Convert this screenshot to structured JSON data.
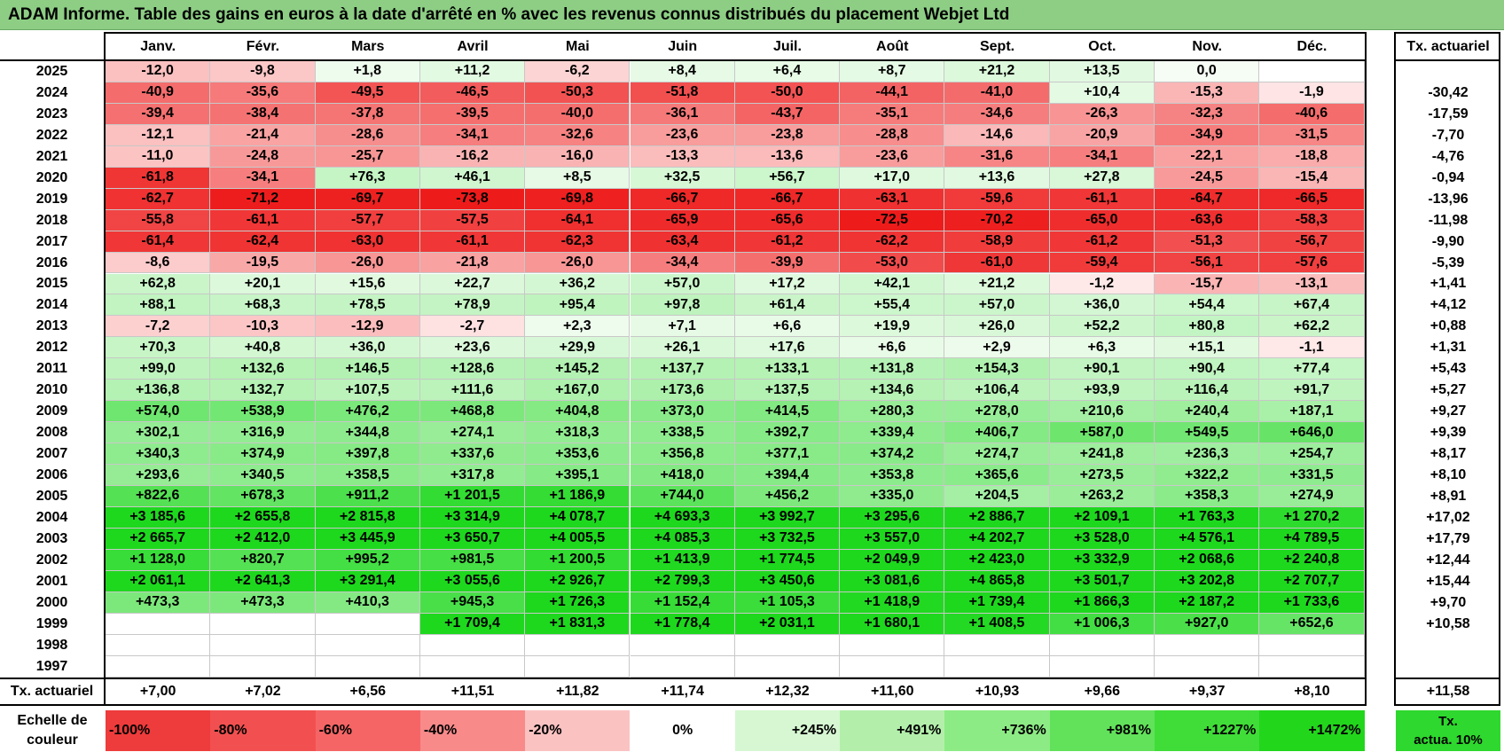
{
  "title": "ADAM Informe. Table des gains en euros à la date d'arrêté en % avec les revenus connus distribués du placement Webjet Ltd",
  "chart_data": {
    "type": "table",
    "columns": [
      "Janv.",
      "Févr.",
      "Mars",
      "Avril",
      "Mai",
      "Juin",
      "Juil.",
      "Août",
      "Sept.",
      "Oct.",
      "Nov.",
      "Déc."
    ],
    "actuarial_header": "Tx. actuariel",
    "rows": [
      {
        "year": "2025",
        "values": [
          "-12,0",
          "-9,8",
          "+1,8",
          "+11,2",
          "-6,2",
          "+8,4",
          "+6,4",
          "+8,7",
          "+21,2",
          "+13,5",
          "0,0",
          ""
        ],
        "actuarial": ""
      },
      {
        "year": "2024",
        "values": [
          "-40,9",
          "-35,6",
          "-49,5",
          "-46,5",
          "-50,3",
          "-51,8",
          "-50,0",
          "-44,1",
          "-41,0",
          "+10,4",
          "-15,3",
          "-1,9"
        ],
        "actuarial": "-30,42"
      },
      {
        "year": "2023",
        "values": [
          "-39,4",
          "-38,4",
          "-37,8",
          "-39,5",
          "-40,0",
          "-36,1",
          "-43,7",
          "-35,1",
          "-34,6",
          "-26,3",
          "-32,3",
          "-40,6"
        ],
        "actuarial": "-17,59"
      },
      {
        "year": "2022",
        "values": [
          "-12,1",
          "-21,4",
          "-28,6",
          "-34,1",
          "-32,6",
          "-23,6",
          "-23,8",
          "-28,8",
          "-14,6",
          "-20,9",
          "-34,9",
          "-31,5"
        ],
        "actuarial": "-7,70"
      },
      {
        "year": "2021",
        "values": [
          "-11,0",
          "-24,8",
          "-25,7",
          "-16,2",
          "-16,0",
          "-13,3",
          "-13,6",
          "-23,6",
          "-31,6",
          "-34,1",
          "-22,1",
          "-18,8"
        ],
        "actuarial": "-4,76"
      },
      {
        "year": "2020",
        "values": [
          "-61,8",
          "-34,1",
          "+76,3",
          "+46,1",
          "+8,5",
          "+32,5",
          "+56,7",
          "+17,0",
          "+13,6",
          "+27,8",
          "-24,5",
          "-15,4"
        ],
        "actuarial": "-0,94"
      },
      {
        "year": "2019",
        "values": [
          "-62,7",
          "-71,2",
          "-69,7",
          "-73,8",
          "-69,8",
          "-66,7",
          "-66,7",
          "-63,1",
          "-59,6",
          "-61,1",
          "-64,7",
          "-66,5"
        ],
        "actuarial": "-13,96"
      },
      {
        "year": "2018",
        "values": [
          "-55,8",
          "-61,1",
          "-57,7",
          "-57,5",
          "-64,1",
          "-65,9",
          "-65,6",
          "-72,5",
          "-70,2",
          "-65,0",
          "-63,6",
          "-58,3"
        ],
        "actuarial": "-11,98"
      },
      {
        "year": "2017",
        "values": [
          "-61,4",
          "-62,4",
          "-63,0",
          "-61,1",
          "-62,3",
          "-63,4",
          "-61,2",
          "-62,2",
          "-58,9",
          "-61,2",
          "-51,3",
          "-56,7"
        ],
        "actuarial": "-9,90"
      },
      {
        "year": "2016",
        "values": [
          "-8,6",
          "-19,5",
          "-26,0",
          "-21,8",
          "-26,0",
          "-34,4",
          "-39,9",
          "-53,0",
          "-61,0",
          "-59,4",
          "-56,1",
          "-57,6"
        ],
        "actuarial": "-5,39"
      },
      {
        "year": "2015",
        "values": [
          "+62,8",
          "+20,1",
          "+15,6",
          "+22,7",
          "+36,2",
          "+57,0",
          "+17,2",
          "+42,1",
          "+21,2",
          "-1,2",
          "-15,7",
          "-13,1"
        ],
        "actuarial": "+1,41"
      },
      {
        "year": "2014",
        "values": [
          "+88,1",
          "+68,3",
          "+78,5",
          "+78,9",
          "+95,4",
          "+97,8",
          "+61,4",
          "+55,4",
          "+57,0",
          "+36,0",
          "+54,4",
          "+67,4"
        ],
        "actuarial": "+4,12"
      },
      {
        "year": "2013",
        "values": [
          "-7,2",
          "-10,3",
          "-12,9",
          "-2,7",
          "+2,3",
          "+7,1",
          "+6,6",
          "+19,9",
          "+26,0",
          "+52,2",
          "+80,8",
          "+62,2"
        ],
        "actuarial": "+0,88"
      },
      {
        "year": "2012",
        "values": [
          "+70,3",
          "+40,8",
          "+36,0",
          "+23,6",
          "+29,9",
          "+26,1",
          "+17,6",
          "+6,6",
          "+2,9",
          "+6,3",
          "+15,1",
          "-1,1"
        ],
        "actuarial": "+1,31"
      },
      {
        "year": "2011",
        "values": [
          "+99,0",
          "+132,6",
          "+146,5",
          "+128,6",
          "+145,2",
          "+137,7",
          "+133,1",
          "+131,8",
          "+154,3",
          "+90,1",
          "+90,4",
          "+77,4"
        ],
        "actuarial": "+5,43"
      },
      {
        "year": "2010",
        "values": [
          "+136,8",
          "+132,7",
          "+107,5",
          "+111,6",
          "+167,0",
          "+173,6",
          "+137,5",
          "+134,6",
          "+106,4",
          "+93,9",
          "+116,4",
          "+91,7"
        ],
        "actuarial": "+5,27"
      },
      {
        "year": "2009",
        "values": [
          "+574,0",
          "+538,9",
          "+476,2",
          "+468,8",
          "+404,8",
          "+373,0",
          "+414,5",
          "+280,3",
          "+278,0",
          "+210,6",
          "+240,4",
          "+187,1"
        ],
        "actuarial": "+9,27"
      },
      {
        "year": "2008",
        "values": [
          "+302,1",
          "+316,9",
          "+344,8",
          "+274,1",
          "+318,3",
          "+338,5",
          "+392,7",
          "+339,4",
          "+406,7",
          "+587,0",
          "+549,5",
          "+646,0"
        ],
        "actuarial": "+9,39"
      },
      {
        "year": "2007",
        "values": [
          "+340,3",
          "+374,9",
          "+397,8",
          "+337,6",
          "+353,6",
          "+356,8",
          "+377,1",
          "+374,2",
          "+274,7",
          "+241,8",
          "+236,3",
          "+254,7"
        ],
        "actuarial": "+8,17"
      },
      {
        "year": "2006",
        "values": [
          "+293,6",
          "+340,5",
          "+358,5",
          "+317,8",
          "+395,1",
          "+418,0",
          "+394,4",
          "+353,8",
          "+365,6",
          "+273,5",
          "+322,2",
          "+331,5"
        ],
        "actuarial": "+8,10"
      },
      {
        "year": "2005",
        "values": [
          "+822,6",
          "+678,3",
          "+911,2",
          "+1 201,5",
          "+1 186,9",
          "+744,0",
          "+456,2",
          "+335,0",
          "+204,5",
          "+263,2",
          "+358,3",
          "+274,9"
        ],
        "actuarial": "+8,91"
      },
      {
        "year": "2004",
        "values": [
          "+3 185,6",
          "+2 655,8",
          "+2 815,8",
          "+3 314,9",
          "+4 078,7",
          "+4 693,3",
          "+3 992,7",
          "+3 295,6",
          "+2 886,7",
          "+2 109,1",
          "+1 763,3",
          "+1 270,2"
        ],
        "actuarial": "+17,02"
      },
      {
        "year": "2003",
        "values": [
          "+2 665,7",
          "+2 412,0",
          "+3 445,9",
          "+3 650,7",
          "+4 005,5",
          "+4 085,3",
          "+3 732,5",
          "+3 557,0",
          "+4 202,7",
          "+3 528,0",
          "+4 576,1",
          "+4 789,5"
        ],
        "actuarial": "+17,79"
      },
      {
        "year": "2002",
        "values": [
          "+1 128,0",
          "+820,7",
          "+995,2",
          "+981,5",
          "+1 200,5",
          "+1 413,9",
          "+1 774,5",
          "+2 049,9",
          "+2 423,0",
          "+3 332,9",
          "+2 068,6",
          "+2 240,8"
        ],
        "actuarial": "+12,44"
      },
      {
        "year": "2001",
        "values": [
          "+2 061,1",
          "+2 641,3",
          "+3 291,4",
          "+3 055,6",
          "+2 926,7",
          "+2 799,3",
          "+3 450,6",
          "+3 081,6",
          "+4 865,8",
          "+3 501,7",
          "+3 202,8",
          "+2 707,7"
        ],
        "actuarial": "+15,44"
      },
      {
        "year": "2000",
        "values": [
          "+473,3",
          "+473,3",
          "+410,3",
          "+945,3",
          "+1 726,3",
          "+1 152,4",
          "+1 105,3",
          "+1 418,9",
          "+1 739,4",
          "+1 866,3",
          "+2 187,2",
          "+1 733,6"
        ],
        "actuarial": "+9,70"
      },
      {
        "year": "1999",
        "values": [
          "",
          "",
          "",
          "+1 709,4",
          "+1 831,3",
          "+1 778,4",
          "+2 031,1",
          "+1 680,1",
          "+1 408,5",
          "+1 006,3",
          "+927,0",
          "+652,6"
        ],
        "actuarial": "+10,58"
      },
      {
        "year": "1998",
        "values": [
          "",
          "",
          "",
          "",
          "",
          "",
          "",
          "",
          "",
          "",
          "",
          ""
        ],
        "actuarial": ""
      },
      {
        "year": "1997",
        "values": [
          "",
          "",
          "",
          "",
          "",
          "",
          "",
          "",
          "",
          "",
          "",
          ""
        ],
        "actuarial": ""
      }
    ],
    "summary_row": {
      "label": "Tx. actuariel",
      "values": [
        "+7,00",
        "+7,02",
        "+6,56",
        "+11,51",
        "+11,82",
        "+11,74",
        "+12,32",
        "+11,60",
        "+10,93",
        "+9,66",
        "+9,37",
        "+8,10"
      ],
      "actuarial": "+11,58"
    }
  },
  "legend": {
    "title": "Echelle de\ncouleur",
    "items": [
      {
        "label": "-100%",
        "color": "#ee3b3b"
      },
      {
        "label": "-80%",
        "color": "#f25050"
      },
      {
        "label": "-60%",
        "color": "#f56565"
      },
      {
        "label": "-40%",
        "color": "#f88a8a"
      },
      {
        "label": "-20%",
        "color": "#fbc2c2"
      },
      {
        "label": "0%",
        "color": "#ffffff"
      },
      {
        "label": "+245%",
        "color": "#d6f7d2"
      },
      {
        "label": "+491%",
        "color": "#b3efab"
      },
      {
        "label": "+736%",
        "color": "#8ceb84"
      },
      {
        "label": "+981%",
        "color": "#62e25a"
      },
      {
        "label": "+1227%",
        "color": "#40dd38"
      },
      {
        "label": "+1472%",
        "color": "#22d61c"
      }
    ],
    "actuarial_label": "Tx.\nactua. 10%",
    "actuarial_color": "#2ed82e"
  },
  "colors": {
    "title_bg": "#8dce84",
    "negative_max": "#ee1b1b",
    "positive_max": "#1ed81e"
  }
}
